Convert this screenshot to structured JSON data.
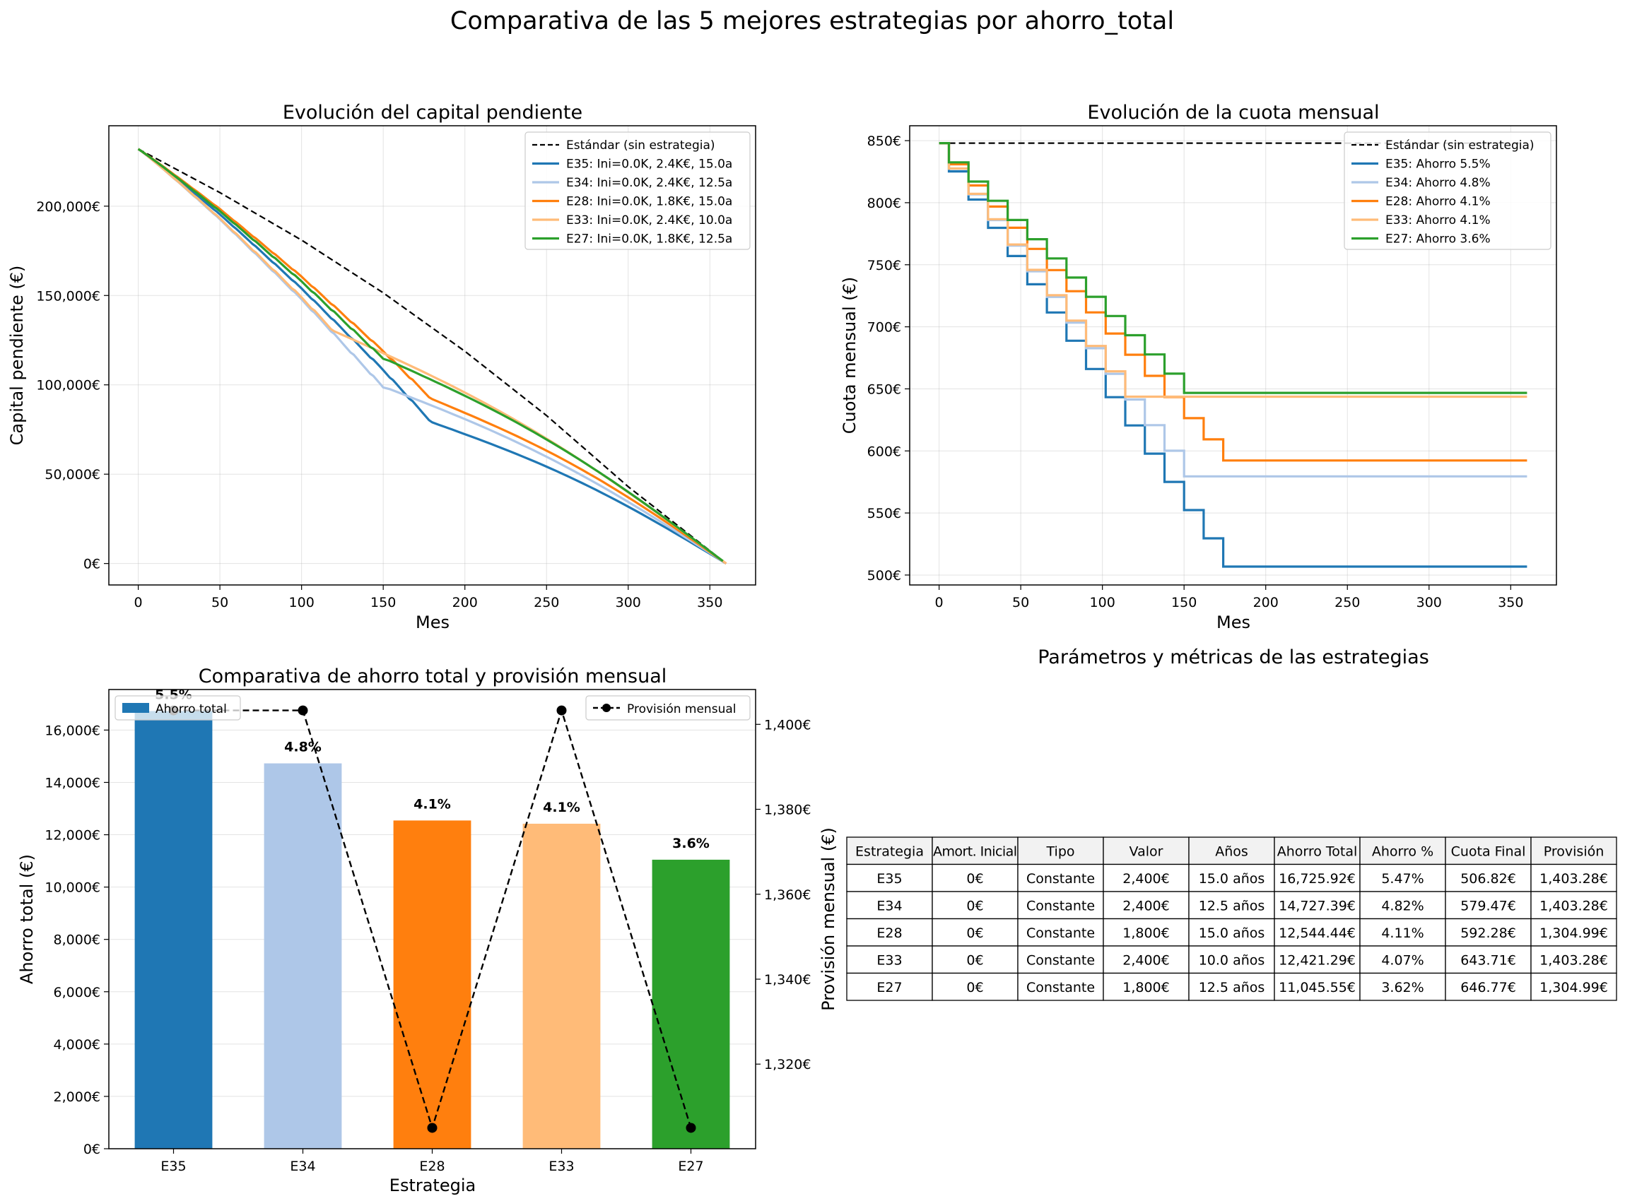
{
  "suptitle": "Comparativa de las 5 mejores estrategias por ahorro_total",
  "colors": {
    "standard": "#000000",
    "E35": "#1f77b4",
    "E34": "#aec7e8",
    "E28": "#ff7f0e",
    "E33": "#ffbb78",
    "E27": "#2ca02c",
    "table_header_bg": "#f2f2f2"
  },
  "chart_data": [
    {
      "type": "line",
      "title": "Evolución del capital pendiente",
      "xlabel": "Mes",
      "ylabel": "Capital pendiente (€)",
      "xlim": [
        -18,
        378
      ],
      "ylim": [
        -12000,
        245000
      ],
      "xticks": [
        0,
        50,
        100,
        150,
        200,
        250,
        300,
        350
      ],
      "yticks": [
        0,
        50000,
        100000,
        150000,
        200000
      ],
      "ytick_labels": [
        "0€",
        "50,000€",
        "100,000€",
        "150,000€",
        "200,000€"
      ],
      "grid": true,
      "legend_position": "top-right",
      "series": [
        {
          "key": "standard",
          "name": "Estándar (sin estrategia)",
          "style": "dashed",
          "points": [
            [
              0,
              232000
            ],
            [
              50,
              207600
            ],
            [
              100,
              181000
            ],
            [
              150,
              151500
            ],
            [
              200,
              118800
            ],
            [
              250,
              82800
            ],
            [
              300,
              43000
            ],
            [
              360,
              0
            ]
          ]
        },
        {
          "key": "E35",
          "name": "E35: Ini=0.0K, 2.4K€, 15.0a",
          "style": "solid",
          "step": 12,
          "start": [
            0,
            232000
          ],
          "end_step": [
            180,
            79000
          ],
          "end": [
            360,
            0
          ],
          "bridge": [
            [
              155,
              103000
            ],
            [
              180,
              79000
            ]
          ]
        },
        {
          "key": "E34",
          "name": "E34: Ini=0.0K, 2.4K€, 12.5a",
          "style": "solid",
          "step": 12,
          "start": [
            0,
            232000
          ],
          "end_step": [
            150,
            99000
          ],
          "end": [
            360,
            0
          ],
          "bridge": [
            [
              125,
              126000
            ],
            [
              150,
              99000
            ]
          ]
        },
        {
          "key": "E28",
          "name": "E28: Ini=0.0K, 1.8K€, 15.0a",
          "style": "solid",
          "step": 12,
          "start": [
            0,
            232000
          ],
          "end_step": [
            180,
            92000
          ],
          "end": [
            360,
            0
          ],
          "bridge": [
            [
              150,
              116000
            ],
            [
              180,
              92000
            ]
          ]
        },
        {
          "key": "E33",
          "name": "E33: Ini=0.0K, 2.4K€, 10.0a",
          "style": "solid",
          "step": 12,
          "start": [
            0,
            232000
          ],
          "end_step": [
            120,
            130000
          ],
          "end": [
            360,
            0
          ],
          "bridge": [
            [
              120,
              130000
            ],
            [
              150,
              116000
            ],
            [
              180,
              90000
            ]
          ]
        },
        {
          "key": "E27",
          "name": "E27: Ini=0.0K, 1.8K€, 12.5a",
          "style": "solid",
          "step": 12,
          "start": [
            0,
            232000
          ],
          "end_step": [
            150,
            115000
          ],
          "end": [
            360,
            0
          ],
          "bridge": [
            [
              150,
              115000
            ],
            [
              200,
              89000
            ],
            [
              250,
              65000
            ]
          ]
        }
      ]
    },
    {
      "type": "line",
      "title": "Evolución de la cuota mensual",
      "xlabel": "Mes",
      "ylabel": "Cuota mensual (€)",
      "xlim": [
        -18,
        378
      ],
      "ylim": [
        492,
        862
      ],
      "xticks": [
        0,
        50,
        100,
        150,
        200,
        250,
        300,
        350
      ],
      "yticks": [
        500,
        550,
        600,
        650,
        700,
        750,
        800,
        850
      ],
      "ytick_labels": [
        "500€",
        "550€",
        "600€",
        "650€",
        "700€",
        "750€",
        "800€",
        "850€"
      ],
      "grid": true,
      "legend_position": "top-right",
      "series": [
        {
          "key": "standard",
          "name": "Estándar (sin estrategia)",
          "style": "dashed",
          "start": 848,
          "final": 848,
          "last_change": 0
        },
        {
          "key": "E35",
          "name": "E35: Ahorro 5.5%",
          "style": "step",
          "start": 848,
          "final": 506.82,
          "last_change": 180
        },
        {
          "key": "E34",
          "name": "E34: Ahorro 4.8%",
          "style": "step",
          "start": 848,
          "final": 579.47,
          "last_change": 150
        },
        {
          "key": "E28",
          "name": "E28: Ahorro 4.1%",
          "style": "step",
          "start": 848,
          "final": 592.28,
          "last_change": 180
        },
        {
          "key": "E33",
          "name": "E33: Ahorro 4.1%",
          "style": "step",
          "start": 848,
          "final": 643.71,
          "last_change": 120
        },
        {
          "key": "E27",
          "name": "E27: Ahorro 3.6%",
          "style": "step",
          "start": 848,
          "final": 646.77,
          "last_change": 150
        }
      ]
    },
    {
      "type": "bar",
      "title": "Comparativa de ahorro total y provisión mensual",
      "xlabel": "Estrategia",
      "ylabel": "Ahorro total (€)",
      "y2label": "Provisión mensual (€)",
      "categories": [
        "E35",
        "E34",
        "E28",
        "E33",
        "E27"
      ],
      "values": [
        16725.92,
        14727.39,
        12544.44,
        12421.29,
        11045.55
      ],
      "bar_labels": [
        "5.5%",
        "4.8%",
        "4.1%",
        "4.1%",
        "3.6%"
      ],
      "ylim": [
        0,
        17550
      ],
      "yticks": [
        0,
        2000,
        4000,
        6000,
        8000,
        10000,
        12000,
        14000,
        16000
      ],
      "ytick_labels": [
        "0€",
        "2,000€",
        "4,000€",
        "6,000€",
        "8,000€",
        "10,000€",
        "12,000€",
        "14,000€",
        "16,000€"
      ],
      "y2lim": [
        1300.08,
        1408.2
      ],
      "y2ticks": [
        1320,
        1340,
        1360,
        1380,
        1400
      ],
      "y2tick_labels": [
        "1,320€",
        "1,340€",
        "1,360€",
        "1,380€",
        "1,400€"
      ],
      "line_values": [
        1403.28,
        1403.28,
        1304.99,
        1403.28,
        1304.99
      ],
      "bar_legend": "Ahorro total",
      "line_legend": "Provisión mensual",
      "grid": true
    },
    {
      "type": "table",
      "title": "Parámetros y métricas de las estrategias",
      "columns": [
        "Estrategia",
        "Amort. Inicial",
        "Tipo",
        "Valor",
        "Años",
        "Ahorro Total",
        "Ahorro %",
        "Cuota Final",
        "Provisión"
      ],
      "rows": [
        [
          "E35",
          "0€",
          "Constante",
          "2,400€",
          "15.0 años",
          "16,725.92€",
          "5.47%",
          "506.82€",
          "1,403.28€"
        ],
        [
          "E34",
          "0€",
          "Constante",
          "2,400€",
          "12.5 años",
          "14,727.39€",
          "4.82%",
          "579.47€",
          "1,403.28€"
        ],
        [
          "E28",
          "0€",
          "Constante",
          "1,800€",
          "15.0 años",
          "12,544.44€",
          "4.11%",
          "592.28€",
          "1,304.99€"
        ],
        [
          "E33",
          "0€",
          "Constante",
          "2,400€",
          "10.0 años",
          "12,421.29€",
          "4.07%",
          "643.71€",
          "1,403.28€"
        ],
        [
          "E27",
          "0€",
          "Constante",
          "1,800€",
          "12.5 años",
          "11,045.55€",
          "3.62%",
          "646.77€",
          "1,304.99€"
        ]
      ]
    }
  ]
}
